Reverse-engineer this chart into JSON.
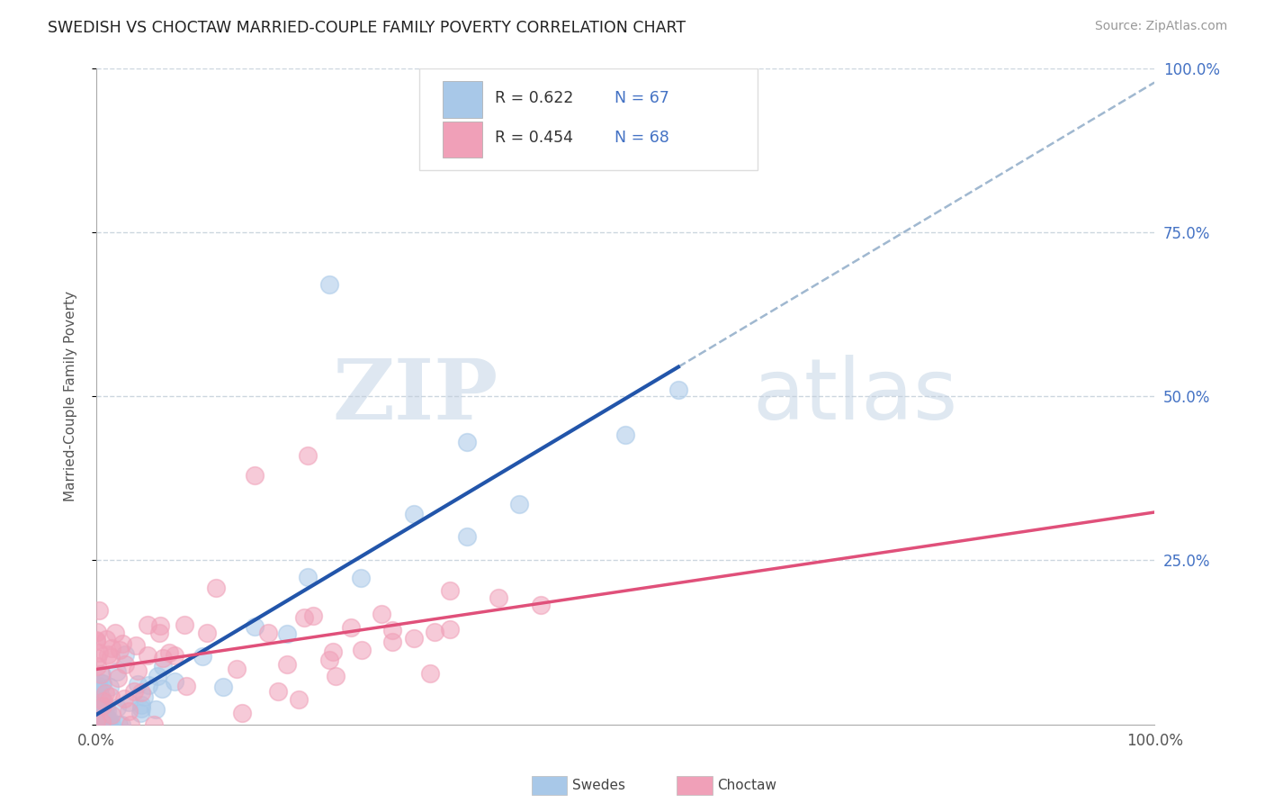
{
  "title": "SWEDISH VS CHOCTAW MARRIED-COUPLE FAMILY POVERTY CORRELATION CHART",
  "source_text": "Source: ZipAtlas.com",
  "ylabel": "Married-Couple Family Poverty",
  "swedes_color": "#a8c8e8",
  "swedes_fill": "#c8dff0",
  "choctaw_color": "#f0a0b8",
  "choctaw_fill": "#f8c8d8",
  "swedes_line_color": "#2255aa",
  "choctaw_line_color": "#e0507a",
  "dashed_line_color": "#a0b8d0",
  "legend_r_swedes": "R = 0.622",
  "legend_n_swedes": "N = 67",
  "legend_r_choctaw": "R = 0.454",
  "legend_n_choctaw": "N = 68",
  "watermark_zip": "ZIP",
  "watermark_atlas": "atlas",
  "background_color": "#ffffff",
  "grid_color": "#c0ccd8",
  "right_axis_color": "#4472c4",
  "label_color": "#555555"
}
